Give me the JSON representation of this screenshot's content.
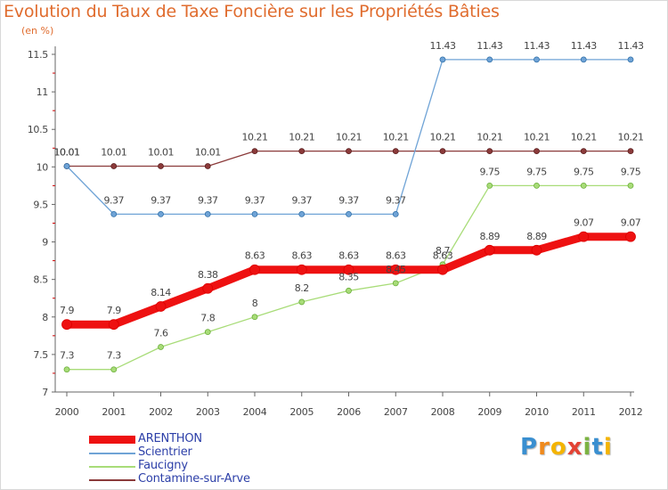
{
  "header": {
    "title": "Evolution du Taux de Taxe Foncière sur les Propriétés Bâties",
    "subtitle": "(en %)"
  },
  "colors": {
    "title": "#e06c2e",
    "axis": "#666666",
    "tick_red": "#cc0000",
    "legend_text": "#2c3fa8"
  },
  "brand": {
    "text": "Proxiti",
    "letters": [
      "P",
      "r",
      "o",
      "x",
      "i",
      "t",
      "i"
    ],
    "letter_colors": [
      "#3a8fd0",
      "#f08a1c",
      "#f4b400",
      "#e34234",
      "#7cb342",
      "#3a8fd0",
      "#f4b400"
    ]
  },
  "chart_data": {
    "type": "line",
    "title": "Evolution du Taux de Taxe Foncière sur les Propriétés Bâties",
    "ylabel": "(en %)",
    "xlabel": "",
    "x": [
      "2000",
      "2001",
      "2002",
      "2003",
      "2004",
      "2005",
      "2006",
      "2007",
      "2008",
      "2009",
      "2010",
      "2011",
      "2012"
    ],
    "ylim": [
      7,
      11.5
    ],
    "yticks": [
      7,
      7.5,
      8,
      8.5,
      9,
      9.5,
      10,
      10.5,
      11,
      11.5
    ],
    "ytick_labels": [
      "7",
      "7.5",
      "8",
      "8.5",
      "9",
      "9.5",
      "10",
      "10.5",
      "11",
      "11.5"
    ],
    "grid": false,
    "legend_position": "bottom-left",
    "series": [
      {
        "name": "ARENTHON",
        "color": "#ee1111",
        "values": [
          7.9,
          7.9,
          8.14,
          8.38,
          8.63,
          8.63,
          8.63,
          8.63,
          8.63,
          8.89,
          8.89,
          9.07,
          9.07
        ],
        "labels": [
          "7.9",
          "7.9",
          "8.14",
          "8.38",
          "8.63",
          "8.63",
          "8.63",
          "8.63",
          "8.63",
          "8.89",
          "8.89",
          "9.07",
          "9.07"
        ]
      },
      {
        "name": "Scientrier",
        "color": "#6fa3d6",
        "values": [
          10.01,
          9.37,
          9.37,
          9.37,
          9.37,
          9.37,
          9.37,
          9.37,
          11.43,
          11.43,
          11.43,
          11.43,
          11.43
        ],
        "labels": [
          "10.01",
          "9.37",
          "9.37",
          "9.37",
          "9.37",
          "9.37",
          "9.37",
          "9.37",
          "11.43",
          "11.43",
          "11.43",
          "11.43",
          "11.43"
        ]
      },
      {
        "name": "Faucigny",
        "color": "#a8dc78",
        "values": [
          7.3,
          7.3,
          7.6,
          7.8,
          8.0,
          8.2,
          8.35,
          8.45,
          8.7,
          9.75,
          9.75,
          9.75,
          9.75
        ],
        "labels": [
          "7.3",
          "7.3",
          "7.6",
          "7.8",
          "8",
          "8.2",
          "8.35",
          "8.45",
          "8.7",
          "9.75",
          "9.75",
          "9.75",
          "9.75"
        ]
      },
      {
        "name": "Contamine-sur-Arve",
        "color": "#8b3a3a",
        "values": [
          10.01,
          10.01,
          10.01,
          10.01,
          10.21,
          10.21,
          10.21,
          10.21,
          10.21,
          10.21,
          10.21,
          10.21,
          10.21
        ],
        "labels": [
          "10.01",
          "10.01",
          "10.01",
          "10.01",
          "10.21",
          "10.21",
          "10.21",
          "10.21",
          "10.21",
          "10.21",
          "10.21",
          "10.21",
          "10.21"
        ]
      }
    ]
  }
}
